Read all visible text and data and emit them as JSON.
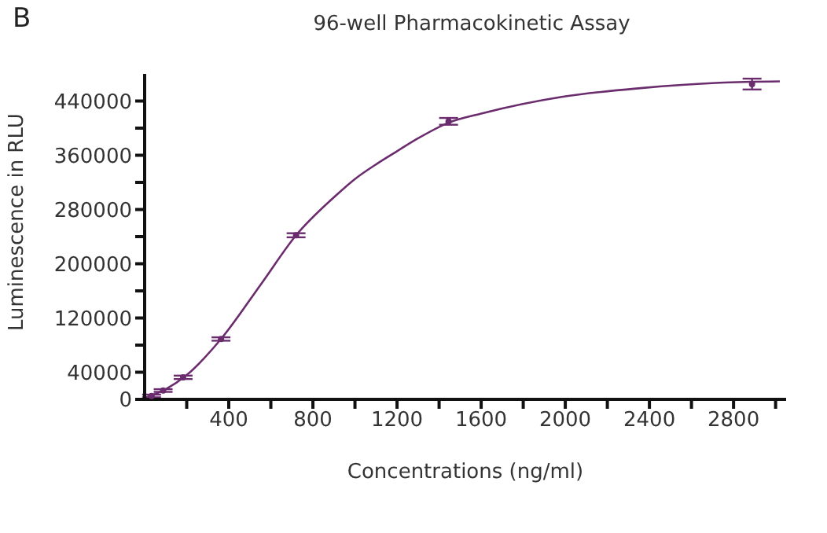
{
  "chart_data": {
    "type": "scatter",
    "title": "96-well Pharmacokinetic Assay",
    "xlabel": "Concentrations (ng/ml)",
    "ylabel": "Luminescence in RLU",
    "annotations": [
      "B"
    ],
    "x": [
      33,
      88,
      183,
      363,
      720,
      1445,
      2888
    ],
    "series": [
      {
        "color": "#6b2c6e",
        "marker": "circle",
        "values": [
          5000,
          13000,
          32500,
          89000,
          242000,
          410000,
          465000
        ],
        "errors": [
          2000,
          2000,
          2500,
          2500,
          3000,
          5000,
          8000
        ]
      },
      {
        "type": "line",
        "color": "#6b2c6e",
        "line_style": "solid",
        "x": [
          8,
          100,
          200,
          363,
          558,
          720,
          907,
          1000,
          1107,
          1200,
          1300,
          1445,
          1608,
          1983,
          2358,
          2733,
          3020
        ],
        "values": [
          3000,
          15000,
          36000,
          89000,
          172000,
          242000,
          300000,
          325000,
          348000,
          366000,
          385000,
          408000,
          422000,
          446000,
          459000,
          467000,
          469000
        ]
      }
    ],
    "xlim": [
      0,
      3050
    ],
    "xticks": [
      {
        "value": 200,
        "label": null
      },
      400,
      {
        "value": 600,
        "label": null
      },
      800,
      {
        "value": 1000,
        "label": null
      },
      1200,
      {
        "value": 1400,
        "label": null
      },
      1600,
      {
        "value": 1800,
        "label": null
      },
      2000,
      {
        "value": 2200,
        "label": null
      },
      2400,
      {
        "value": 2600,
        "label": null
      },
      2800,
      {
        "value": 3000,
        "label": null
      }
    ],
    "ylim": [
      0,
      480000
    ],
    "yticks": [
      0,
      40000,
      {
        "value": 80000,
        "label": null
      },
      120000,
      {
        "value": 160000,
        "label": null
      },
      200000,
      {
        "value": 240000,
        "label": null
      },
      280000,
      {
        "value": 320000,
        "label": null
      },
      360000,
      {
        "value": 400000,
        "label": null
      },
      440000
    ],
    "grid": false,
    "legend": false
  }
}
